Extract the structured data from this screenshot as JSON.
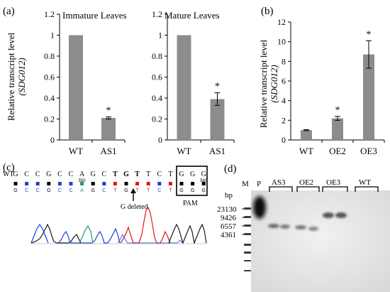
{
  "chart_data": [
    {
      "type": "bar",
      "panel": "(a)",
      "title": "Immature Leaves",
      "ylabel": "Relative transcript level",
      "ylabel_gene": "(SDG012)",
      "categories": [
        "WT",
        "AS1"
      ],
      "values": [
        1.0,
        0.21
      ],
      "errors": [
        0,
        0.01
      ],
      "significance": [
        "",
        "*"
      ],
      "ylim": [
        0,
        1.2
      ],
      "yticks": [
        "0",
        "0.2",
        "0.4",
        "0.6",
        "0.8",
        "1",
        "1.2"
      ]
    },
    {
      "type": "bar",
      "panel": "",
      "title": "Mature Leaves",
      "categories": [
        "WT",
        "AS1"
      ],
      "values": [
        1.0,
        0.39
      ],
      "errors": [
        0,
        0.06
      ],
      "significance": [
        "",
        "*"
      ],
      "ylim": [
        0,
        1.2
      ],
      "yticks": [
        "0",
        "0.2",
        "0.4",
        "0.6",
        "0.8",
        "1",
        "1.2"
      ]
    },
    {
      "type": "bar",
      "panel": "(b)",
      "ylabel": "Relative transcript level",
      "ylabel_gene": "(SDG012)",
      "categories": [
        "WT",
        "OE2",
        "OE3"
      ],
      "values": [
        1.0,
        2.2,
        8.7
      ],
      "errors": [
        0.05,
        0.2,
        1.4
      ],
      "significance": [
        "",
        "*",
        "*"
      ],
      "ylim": [
        0,
        12
      ],
      "yticks": [
        "0",
        "2",
        "4",
        "6",
        "8",
        "10",
        "12"
      ]
    }
  ],
  "panel_c": {
    "label": "(c)",
    "wt_label": "WT",
    "bases": [
      "G",
      "C",
      "C",
      "G",
      "C",
      "C",
      "A",
      "G",
      "C",
      "T",
      "G",
      "T",
      "T",
      "C",
      "T",
      "G",
      "G",
      "G"
    ],
    "base_colors": {
      "G": "#000000",
      "C": "#1f3fd6",
      "A": "#1aa05a",
      "T": "#e01818"
    },
    "position_marks": [
      "550",
      "560"
    ],
    "annotation": "G deleted",
    "pam_label": "PAM"
  },
  "panel_d": {
    "label": "(d)",
    "lane_labels": [
      "M",
      "P",
      "AS3",
      "OE2",
      "OE3",
      "WT"
    ],
    "bp_label": "bp",
    "marker_sizes": [
      "23130",
      "9426",
      "6557",
      "4361"
    ]
  }
}
